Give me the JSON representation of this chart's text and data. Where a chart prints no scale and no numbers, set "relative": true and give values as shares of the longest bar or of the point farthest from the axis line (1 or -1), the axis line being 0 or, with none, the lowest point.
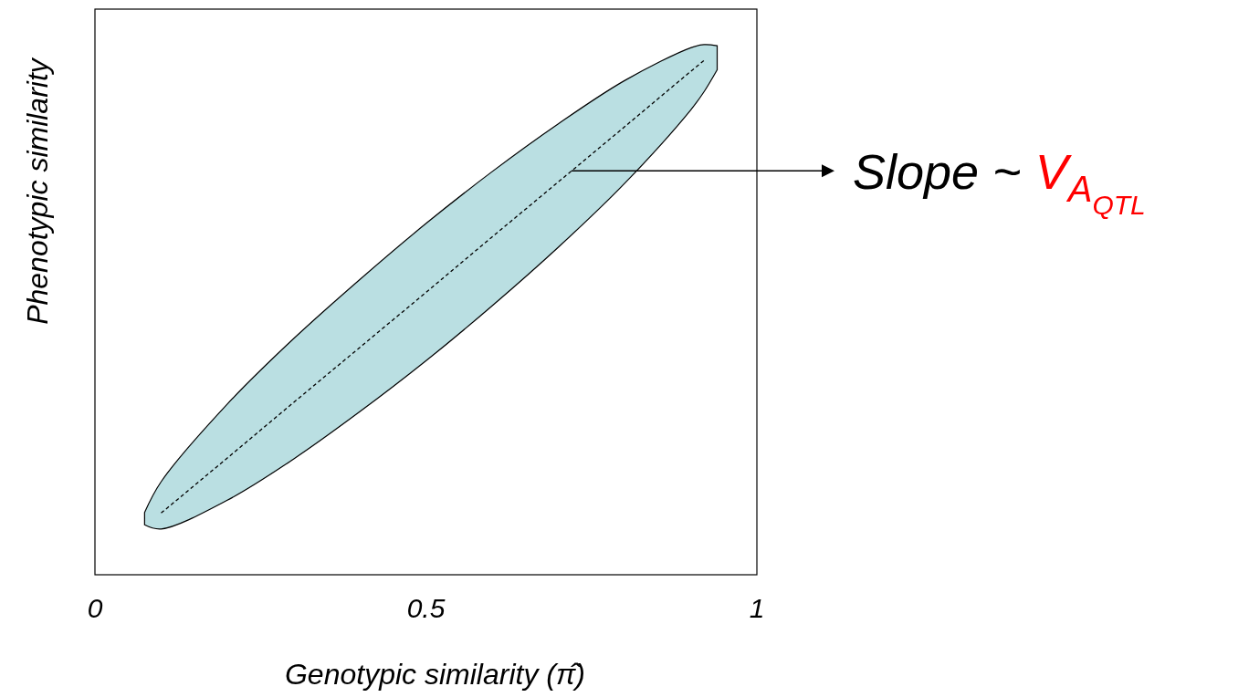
{
  "chart_data": {
    "type": "line",
    "relative": true,
    "xlabel": "Genotypic similarity (π̂)",
    "ylabel": "Phenotypic similarity",
    "series": [
      {
        "color": "#000000",
        "x": [
          0.075,
          0.1,
          0.2,
          0.3,
          0.4,
          0.5,
          0.6,
          0.7,
          0.8,
          0.9,
          0.92,
          0.94
        ],
        "values": [
          null,
          0.12,
          0.227,
          0.335,
          0.442,
          0.549,
          0.657,
          0.764,
          0.871,
          0.979,
          1,
          null
        ],
        "lower": [
          0.097,
          0.089,
          0.145,
          0.225,
          0.317,
          0.416,
          0.523,
          0.637,
          0.761,
          0.904,
          0.939,
          0.982
        ],
        "upper": [
          0.121,
          0.181,
          0.332,
          0.459,
          0.574,
          0.683,
          0.784,
          0.877,
          0.961,
          1.025,
          1.031,
          1.029
        ]
      }
    ],
    "line_style": "dashed",
    "marker": "none",
    "xlim": [
      0,
      1
    ],
    "xticks": [
      0,
      0.5,
      1
    ],
    "tick_labels": "x",
    "grid": false,
    "annotations": [
      "Slope  ~  V$_{A}$$_{QTL}$"
    ]
  }
}
